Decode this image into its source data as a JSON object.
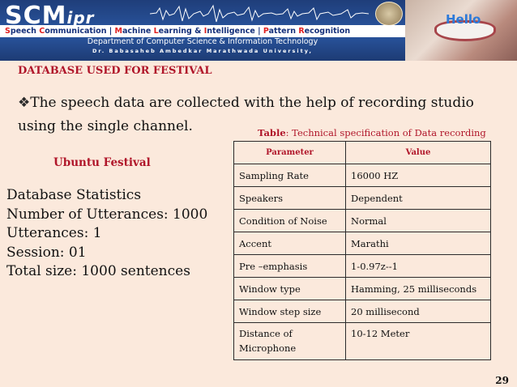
{
  "header": {
    "logo_main": "SCM",
    "logo_sub": "ipr",
    "tagline_parts": [
      {
        "cap": "S",
        "rest": "peech "
      },
      {
        "cap": "C",
        "rest": "ommunication | "
      },
      {
        "cap": "M",
        "rest": "achine "
      },
      {
        "cap": "L",
        "rest": "earning & "
      },
      {
        "cap": "I",
        "rest": "ntelligence | "
      },
      {
        "cap": "P",
        "rest": "attern "
      },
      {
        "cap": "R",
        "rest": "ecognition"
      }
    ],
    "department": "Department of Computer Science & Information Technology",
    "university": "Dr. Babasaheb Ambedkar Marathwada University,",
    "photo_text": "Hello"
  },
  "slide": {
    "title": "DATABASE USED FOR FESTIVAL",
    "bullet_mark": "❖",
    "bullet_line1": "The speech data are collected with the help of recording studio",
    "bullet_line2": "using the single channel",
    "bullet_line2_end": ".",
    "table_caption_label": "Table",
    "table_caption_text": ": Technical specification of Data recording",
    "ubuntu_label": "Ubuntu Festival",
    "stats": [
      "Database Statistics",
      "Number of Utterances: 1000",
      "Utterances: 1",
      "Session: 01",
      "Total size: 1000 sentences"
    ],
    "page_number": "29"
  },
  "table": {
    "headers": [
      "Parameter",
      "Value"
    ],
    "rows": [
      [
        "Sampling Rate",
        "16000 HZ"
      ],
      [
        "Speakers",
        "Dependent"
      ],
      [
        "Condition of Noise",
        "Normal"
      ],
      [
        "Accent",
        "Marathi"
      ],
      [
        "Pre –emphasis",
        "1-0.97z--1"
      ],
      [
        "Window type",
        "Hamming, 25 milliseconds"
      ],
      [
        "Window step size",
        "20 millisecond"
      ],
      [
        "Distance of Microphone",
        "10-12 Meter"
      ]
    ]
  },
  "colors": {
    "banner": "#1f3e7a",
    "accent_red": "#b0162a",
    "background": "#fbe9dc"
  }
}
